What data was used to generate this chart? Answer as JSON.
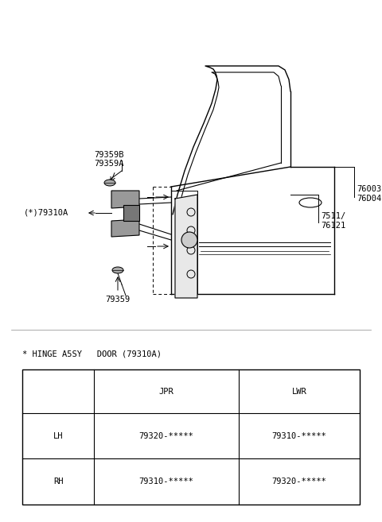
{
  "bg_color": "#ffffff",
  "fig_width": 4.8,
  "fig_height": 6.57,
  "dpi": 100,
  "title_text": "* HINGE A5SY   DOOR (79310A)",
  "table_headers": [
    "",
    "JPR",
    "LWR"
  ],
  "table_rows": [
    [
      "LH",
      "79320-*****",
      "79310-*****"
    ],
    [
      "RH",
      "79310-*****",
      "79320-*****"
    ]
  ],
  "door_color": "#ffffff",
  "line_color": "#000000",
  "label_79359B": "79359B",
  "label_79359A": "79359A",
  "label_79310A": "(*)79310A",
  "label_79359": "79359",
  "label_76003": "76003/",
  "label_76004": "76D04",
  "label_7511": "7511/",
  "label_76121": "76121"
}
